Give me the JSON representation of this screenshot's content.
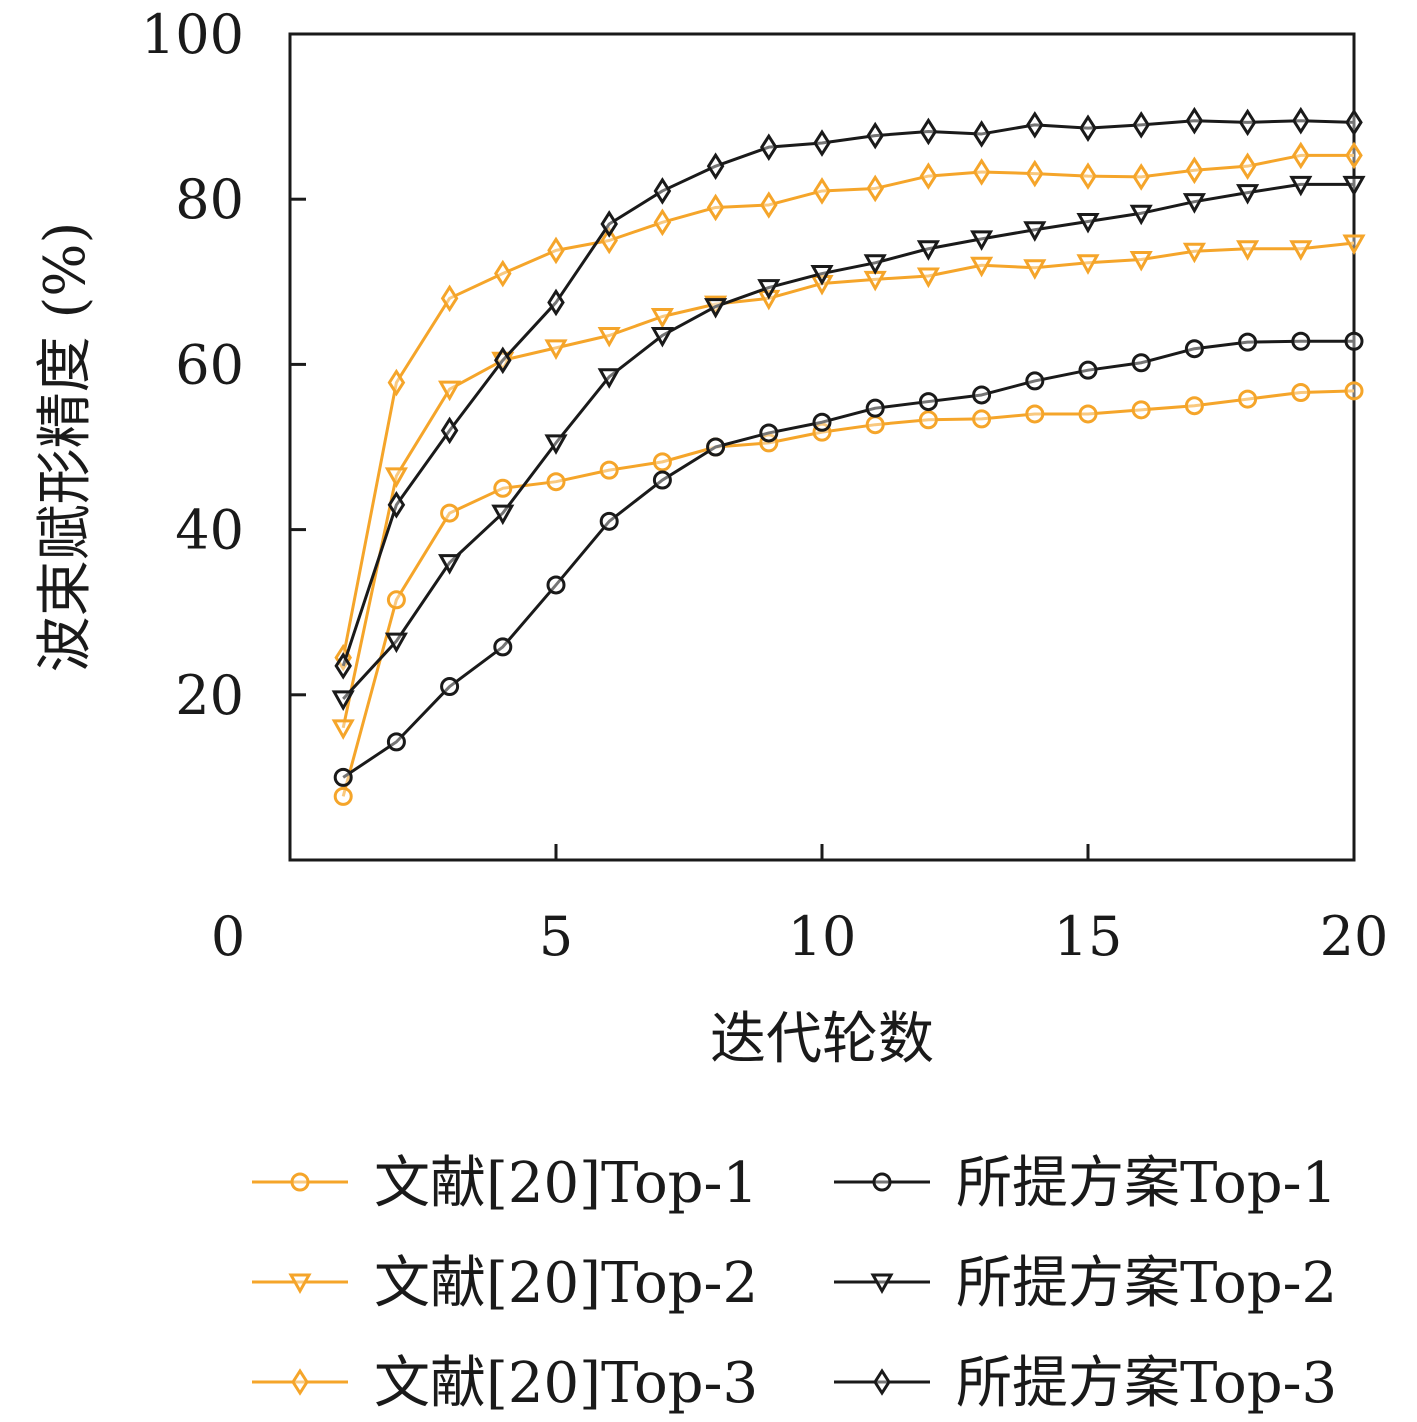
{
  "chart_data": {
    "type": "line",
    "xlabel": "迭代轮数",
    "ylabel": "波束赋形精度 (%)",
    "xlim": [
      0,
      20
    ],
    "ylim": [
      0,
      100
    ],
    "xticks": [
      0,
      5,
      10,
      15,
      20
    ],
    "yticks": [
      20,
      40,
      60,
      80,
      100
    ],
    "grid": false,
    "legend_position": "bottom",
    "x": [
      1,
      2,
      3,
      4,
      5,
      6,
      7,
      8,
      9,
      10,
      11,
      12,
      13,
      14,
      15,
      16,
      17,
      18,
      19,
      20
    ],
    "series": [
      {
        "name": "文献[20]Top-1",
        "color": "#f5a52a",
        "marker": "circle",
        "values": [
          7.7,
          31.5,
          42.0,
          45.0,
          45.8,
          47.2,
          48.2,
          50.0,
          50.5,
          51.8,
          52.7,
          53.3,
          53.4,
          54.0,
          54.0,
          54.5,
          55.0,
          55.8,
          56.6,
          56.8
        ]
      },
      {
        "name": "文献[20]Top-2",
        "color": "#f5a52a",
        "marker": "triangle-down",
        "values": [
          16.0,
          46.5,
          57.0,
          60.5,
          62.0,
          63.5,
          65.8,
          67.3,
          68.0,
          69.8,
          70.3,
          70.7,
          72.0,
          71.7,
          72.3,
          72.7,
          73.7,
          74.0,
          74.0,
          74.7
        ]
      },
      {
        "name": "文献[20]Top-3",
        "color": "#f5a52a",
        "marker": "diamond",
        "values": [
          24.5,
          57.8,
          68.0,
          71.0,
          73.8,
          75.0,
          77.2,
          79.0,
          79.3,
          81.0,
          81.3,
          82.8,
          83.3,
          83.1,
          82.8,
          82.7,
          83.5,
          84.0,
          85.3,
          85.3
        ]
      },
      {
        "name": "所提方案Top-1",
        "color": "#1a1a1a",
        "marker": "circle",
        "values": [
          10.0,
          14.3,
          21.0,
          25.8,
          33.3,
          41.0,
          46.0,
          50.0,
          51.7,
          53.0,
          54.7,
          55.5,
          56.3,
          58.0,
          59.3,
          60.2,
          61.9,
          62.7,
          62.8,
          62.8
        ]
      },
      {
        "name": "所提方案Top-2",
        "color": "#1a1a1a",
        "marker": "triangle-down",
        "values": [
          19.5,
          26.5,
          36.0,
          42.0,
          50.5,
          58.5,
          63.5,
          67.0,
          69.3,
          71.0,
          72.3,
          74.0,
          75.2,
          76.3,
          77.3,
          78.3,
          79.7,
          80.8,
          81.8,
          81.8
        ]
      },
      {
        "name": "所提方案Top-3",
        "color": "#1a1a1a",
        "marker": "diamond",
        "values": [
          23.5,
          43.0,
          52.0,
          60.5,
          67.5,
          77.0,
          81.0,
          84.0,
          86.3,
          86.8,
          87.7,
          88.2,
          87.9,
          89.0,
          88.6,
          89.0,
          89.5,
          89.3,
          89.5,
          89.3
        ]
      }
    ]
  }
}
